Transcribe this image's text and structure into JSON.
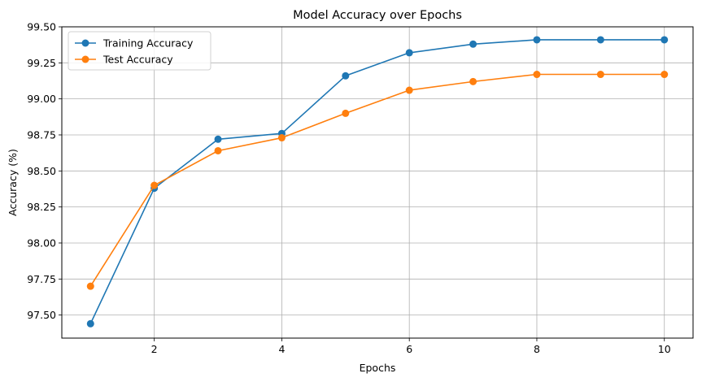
{
  "chart_data": {
    "type": "line",
    "title": "Model Accuracy over Epochs",
    "xlabel": "Epochs",
    "ylabel": "Accuracy (%)",
    "x": [
      1,
      2,
      3,
      4,
      5,
      6,
      7,
      8,
      9,
      10
    ],
    "xlim": [
      0.55,
      10.45
    ],
    "ylim": [
      97.34,
      99.5
    ],
    "xticks": [
      2,
      4,
      6,
      8,
      10
    ],
    "yticks": [
      97.5,
      97.75,
      98.0,
      98.25,
      98.5,
      98.75,
      99.0,
      99.25,
      99.5
    ],
    "ytick_labels": [
      "97.50",
      "97.75",
      "98.00",
      "98.25",
      "98.50",
      "98.75",
      "99.00",
      "99.25",
      "99.50"
    ],
    "grid": true,
    "legend_position": "upper-left",
    "series": [
      {
        "name": "Training Accuracy",
        "color": "#1f77b4",
        "marker": "circle",
        "values": [
          97.44,
          98.38,
          98.72,
          98.76,
          99.16,
          99.32,
          99.38,
          99.41,
          99.41,
          99.41
        ]
      },
      {
        "name": "Test Accuracy",
        "color": "#ff7f0e",
        "marker": "circle",
        "values": [
          97.7,
          98.4,
          98.64,
          98.73,
          98.9,
          99.06,
          99.12,
          99.17,
          99.17,
          99.17
        ]
      }
    ]
  }
}
